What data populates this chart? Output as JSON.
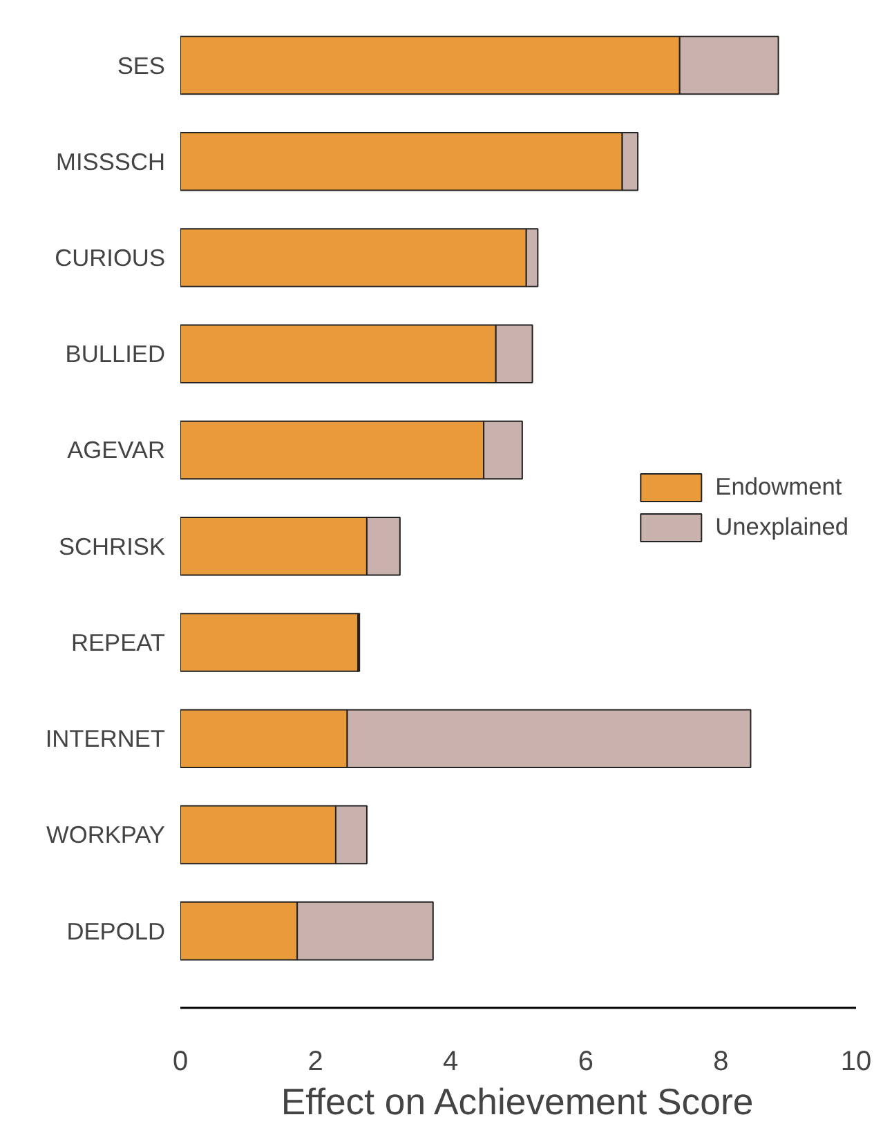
{
  "chart_data": {
    "type": "bar",
    "orientation": "horizontal",
    "stacked": true,
    "xlabel": "Effect on Achievement Score",
    "categories": [
      "SES",
      "MISSSCH",
      "CURIOUS",
      "BULLIED",
      "AGEVAR",
      "SCHRISK",
      "REPEAT",
      "INTERNET",
      "WORKPAY",
      "DEPOLD"
    ],
    "series": [
      {
        "name": "Endowment",
        "color": "#e99a3a",
        "values": [
          7.39,
          6.54,
          5.12,
          4.67,
          4.49,
          2.76,
          2.63,
          2.47,
          2.3,
          1.73
        ]
      },
      {
        "name": "Unexplained",
        "color": "#c9b2ae",
        "values": [
          1.46,
          0.23,
          0.17,
          0.54,
          0.57,
          0.49,
          0.02,
          5.97,
          0.46,
          2.01
        ]
      }
    ],
    "xlim": [
      0,
      10
    ],
    "xticks": [
      0,
      2,
      4,
      6,
      8,
      10
    ],
    "grid": false,
    "legend": "right"
  }
}
